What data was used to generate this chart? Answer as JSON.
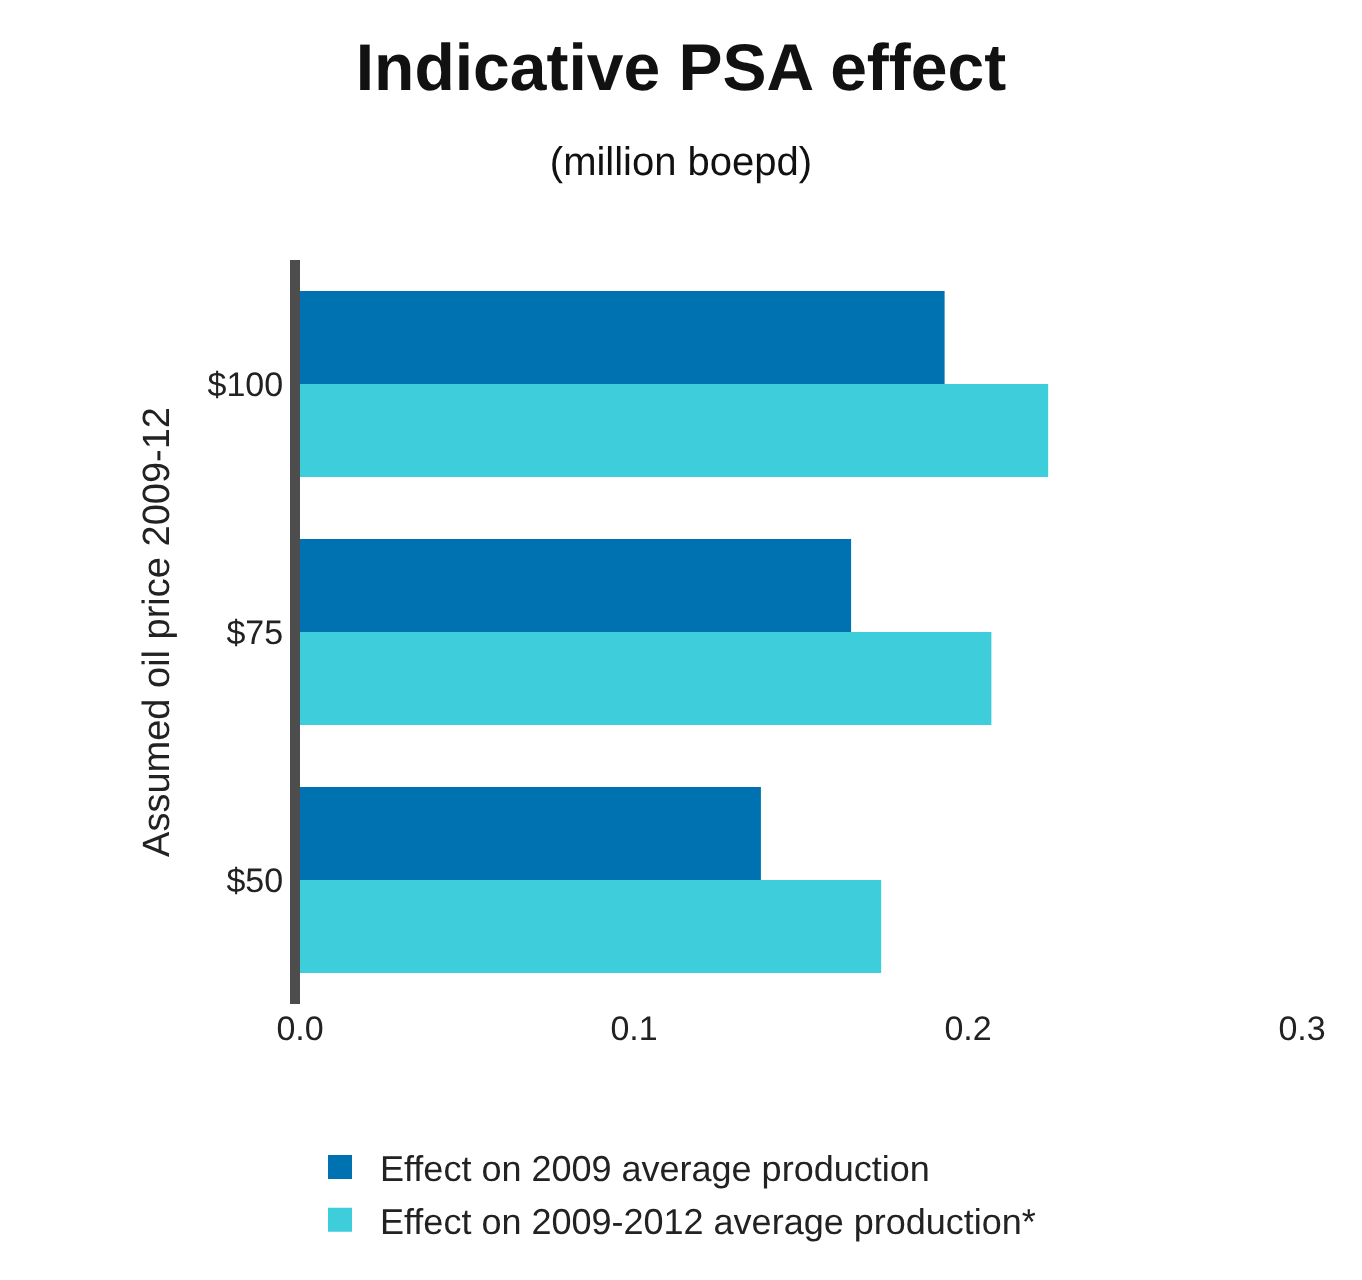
{
  "chart_data": {
    "type": "bar",
    "orientation": "horizontal",
    "title": "Indicative PSA effect",
    "subtitle": "(million boepd)",
    "ylabel": "Assumed oil price 2009-12",
    "categories": [
      "$100",
      "$75",
      "$50"
    ],
    "series": [
      {
        "name": "Effect on 2009 average production",
        "color": "#0072b2",
        "values": [
          0.193,
          0.165,
          0.138
        ]
      },
      {
        "name": "Effect on 2009-2012 average production*",
        "color": "#3ecddb",
        "values": [
          0.224,
          0.207,
          0.174
        ]
      }
    ],
    "xlim": [
      0,
      0.3
    ],
    "xticks": [
      {
        "value": 0,
        "label": "0.0"
      },
      {
        "value": 0.1,
        "label": "0.1"
      },
      {
        "value": 0.2,
        "label": "0.2"
      },
      {
        "value": 0.3,
        "label": "0.3"
      }
    ],
    "legend": "bottom"
  }
}
